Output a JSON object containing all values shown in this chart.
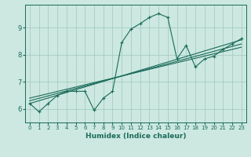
{
  "xlabel": "Humidex (Indice chaleur)",
  "ylabel": "",
  "xlim": [
    -0.5,
    23.5
  ],
  "ylim": [
    5.5,
    9.85
  ],
  "bg_color": "#cce8e0",
  "grid_color": "#a0c8bc",
  "line_color": "#1a6b5a",
  "x_ticks": [
    0,
    1,
    2,
    3,
    4,
    5,
    6,
    7,
    8,
    9,
    10,
    11,
    12,
    13,
    14,
    15,
    16,
    17,
    18,
    19,
    20,
    21,
    22,
    23
  ],
  "y_ticks": [
    6,
    7,
    8,
    9
  ],
  "line1_x": [
    0,
    1,
    2,
    3,
    4,
    5,
    6,
    7,
    8,
    9,
    10,
    11,
    12,
    13,
    14,
    15,
    16,
    17,
    18,
    19,
    20,
    21,
    22,
    23
  ],
  "line1_y": [
    6.2,
    5.9,
    6.2,
    6.5,
    6.65,
    6.65,
    6.65,
    5.95,
    6.4,
    6.65,
    8.45,
    8.95,
    9.15,
    9.38,
    9.52,
    9.38,
    7.85,
    8.35,
    7.55,
    7.85,
    7.95,
    8.2,
    8.4,
    8.6
  ],
  "line2_x": [
    0,
    23
  ],
  "line2_y": [
    6.2,
    8.55
  ],
  "line3_x": [
    0,
    23
  ],
  "line3_y": [
    6.3,
    8.4
  ],
  "line4_x": [
    0,
    23
  ],
  "line4_y": [
    6.4,
    8.28
  ]
}
